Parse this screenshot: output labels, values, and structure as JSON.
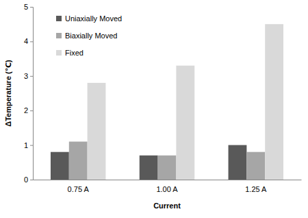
{
  "chart_data": {
    "type": "bar",
    "x_label": "Current",
    "y_label": "ΔTemperature (℃)",
    "categories": [
      "0.75 A",
      "1.00 A",
      "1.25 A"
    ],
    "series": [
      {
        "name": "Uniaxially Moved",
        "color": "#595959",
        "values": [
          0.8,
          0.7,
          1.0
        ]
      },
      {
        "name": "Biaxially Moved",
        "color": "#a6a6a6",
        "values": [
          1.1,
          0.7,
          0.8
        ]
      },
      {
        "name": "Fixed",
        "color": "#d9d9d9",
        "values": [
          2.8,
          3.3,
          4.5
        ]
      }
    ],
    "ylim": [
      0,
      5
    ],
    "yticks": [
      0,
      1,
      2,
      3,
      4,
      5
    ],
    "grid": false,
    "legend": "upper left"
  }
}
